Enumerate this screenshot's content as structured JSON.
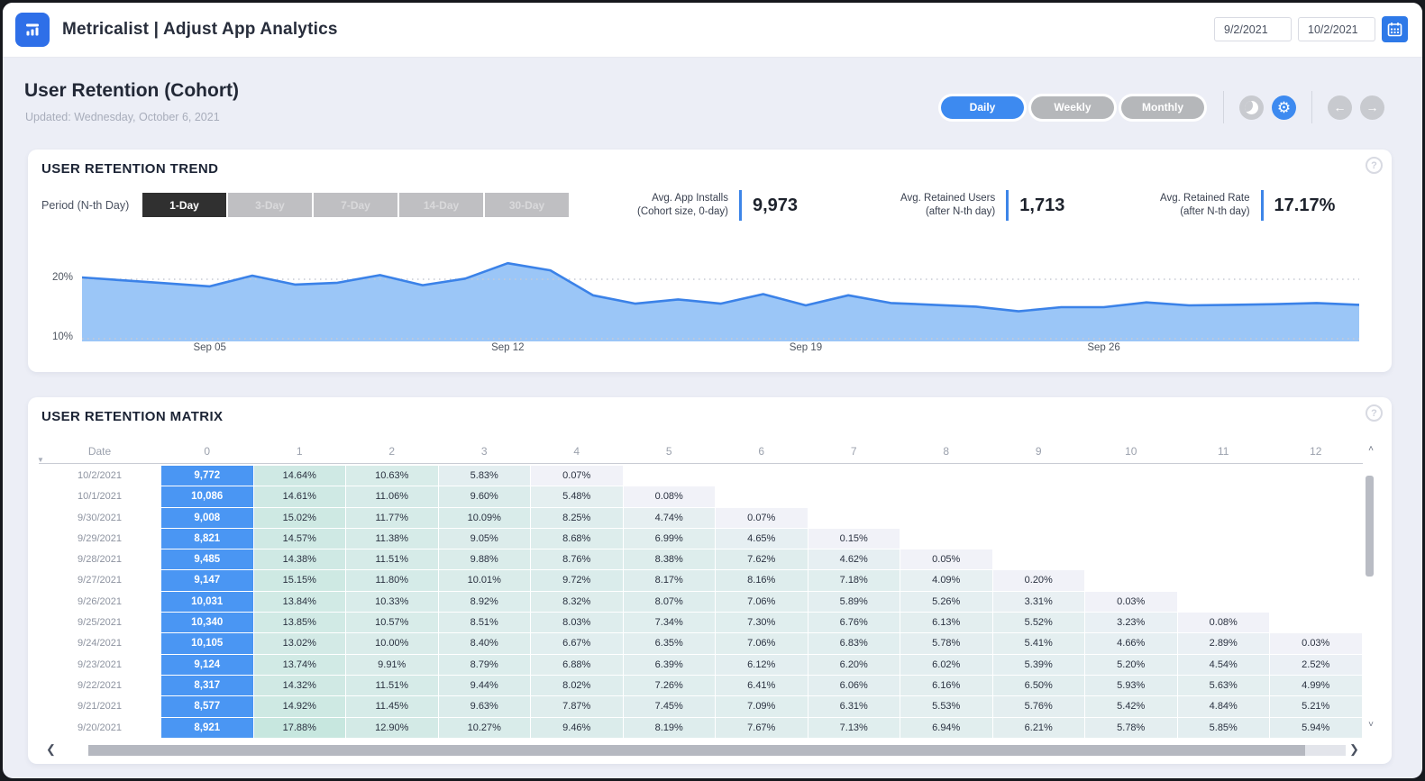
{
  "topbar": {
    "app_title": "Metricalist | Adjust App Analytics",
    "date_from": "9/2/2021",
    "date_to": "10/2/2021"
  },
  "page": {
    "title": "User Retention (Cohort)",
    "updated": "Updated: Wednesday, October 6, 2021",
    "view_toggles": [
      {
        "label": "Daily",
        "active": true
      },
      {
        "label": "Weekly",
        "active": false
      },
      {
        "label": "Monthly",
        "active": false
      }
    ]
  },
  "trend_card": {
    "title": "USER RETENTION TREND",
    "help": "?",
    "period_label": "Period (N-th Day)",
    "periods": [
      {
        "label": "1-Day",
        "active": true
      },
      {
        "label": "3-Day",
        "active": false
      },
      {
        "label": "7-Day",
        "active": false
      },
      {
        "label": "14-Day",
        "active": false
      },
      {
        "label": "30-Day",
        "active": false
      }
    ],
    "kpis": [
      {
        "label_line1": "Avg. App Installs",
        "label_line2": "(Cohort size, 0-day)",
        "value": "9,973"
      },
      {
        "label_line1": "Avg. Retained Users",
        "label_line2": "(after N-th day)",
        "value": "1,713"
      },
      {
        "label_line1": "Avg. Retained Rate",
        "label_line2": "(after N-th day)",
        "value": "17.17%"
      }
    ]
  },
  "chart_data": {
    "type": "area",
    "title": "USER RETENTION TREND",
    "unit": "%",
    "x": [
      "Sep 2",
      "Sep 3",
      "Sep 4",
      "Sep 5",
      "Sep 6",
      "Sep 7",
      "Sep 8",
      "Sep 9",
      "Sep 10",
      "Sep 11",
      "Sep 12",
      "Sep 13",
      "Sep 14",
      "Sep 15",
      "Sep 16",
      "Sep 17",
      "Sep 18",
      "Sep 19",
      "Sep 20",
      "Sep 21",
      "Sep 22",
      "Sep 23",
      "Sep 24",
      "Sep 25",
      "Sep 26",
      "Sep 27",
      "Sep 28",
      "Sep 29",
      "Sep 30",
      "Oct 1",
      "Oct 2"
    ],
    "values": [
      20.3,
      19.8,
      19.3,
      18.8,
      20.6,
      19.1,
      19.4,
      20.7,
      19.0,
      20.1,
      22.7,
      21.5,
      17.3,
      15.9,
      16.6,
      15.9,
      17.5,
      15.6,
      17.3,
      16.0,
      15.7,
      15.4,
      14.6,
      15.3,
      15.3,
      16.1,
      15.6,
      15.7,
      15.8,
      16.0,
      15.7
    ],
    "x_ticks": [
      "Sep 05",
      "Sep 12",
      "Sep 19",
      "Sep 26"
    ],
    "x_tick_positions": [
      3,
      10,
      17,
      24
    ],
    "y_ticks": [
      "20%",
      "10%"
    ],
    "y_tick_values": [
      20,
      10
    ],
    "ylim": [
      9.55,
      25.6
    ],
    "grid": "dotted horizontal lines at 10% and 20%",
    "legend": "none",
    "line_color": "#3b82e8",
    "fill_color": "#9bc6f7"
  },
  "matrix_card": {
    "title": "USER RETENTION MATRIX",
    "help": "?",
    "columns": [
      "Date",
      "0",
      "1",
      "2",
      "3",
      "4",
      "5",
      "6",
      "7",
      "8",
      "9",
      "10",
      "11",
      "12"
    ],
    "heat_low": "#f1f2f8",
    "heat_high": "#c7e7df",
    "cohort_color": "#4a96f3",
    "rows": [
      {
        "date": "10/2/2021",
        "cohort_size": "9,772",
        "retention": [
          14.64,
          10.63,
          5.83,
          0.07
        ]
      },
      {
        "date": "10/1/2021",
        "cohort_size": "10,086",
        "retention": [
          14.61,
          11.06,
          9.6,
          5.48,
          0.08
        ]
      },
      {
        "date": "9/30/2021",
        "cohort_size": "9,008",
        "retention": [
          15.02,
          11.77,
          10.09,
          8.25,
          4.74,
          0.07
        ]
      },
      {
        "date": "9/29/2021",
        "cohort_size": "8,821",
        "retention": [
          14.57,
          11.38,
          9.05,
          8.68,
          6.99,
          4.65,
          0.15
        ]
      },
      {
        "date": "9/28/2021",
        "cohort_size": "9,485",
        "retention": [
          14.38,
          11.51,
          9.88,
          8.76,
          8.38,
          7.62,
          4.62,
          0.05
        ]
      },
      {
        "date": "9/27/2021",
        "cohort_size": "9,147",
        "retention": [
          15.15,
          11.8,
          10.01,
          9.72,
          8.17,
          8.16,
          7.18,
          4.09,
          0.2
        ]
      },
      {
        "date": "9/26/2021",
        "cohort_size": "10,031",
        "retention": [
          13.84,
          10.33,
          8.92,
          8.32,
          8.07,
          7.06,
          5.89,
          5.26,
          3.31,
          0.03
        ]
      },
      {
        "date": "9/25/2021",
        "cohort_size": "10,340",
        "retention": [
          13.85,
          10.57,
          8.51,
          8.03,
          7.34,
          7.3,
          6.76,
          6.13,
          5.52,
          3.23,
          0.08
        ]
      },
      {
        "date": "9/24/2021",
        "cohort_size": "10,105",
        "retention": [
          13.02,
          10.0,
          8.4,
          6.67,
          6.35,
          7.06,
          6.83,
          5.78,
          5.41,
          4.66,
          2.89,
          0.03
        ]
      },
      {
        "date": "9/23/2021",
        "cohort_size": "9,124",
        "retention": [
          13.74,
          9.91,
          8.79,
          6.88,
          6.39,
          6.12,
          6.2,
          6.02,
          5.39,
          5.2,
          4.54,
          2.52
        ]
      },
      {
        "date": "9/22/2021",
        "cohort_size": "8,317",
        "retention": [
          14.32,
          11.51,
          9.44,
          8.02,
          7.26,
          6.41,
          6.06,
          6.16,
          6.5,
          5.93,
          5.63,
          4.99
        ]
      },
      {
        "date": "9/21/2021",
        "cohort_size": "8,577",
        "retention": [
          14.92,
          11.45,
          9.63,
          7.87,
          7.45,
          7.09,
          6.31,
          5.53,
          5.76,
          5.42,
          4.84,
          5.21
        ]
      },
      {
        "date": "9/20/2021",
        "cohort_size": "8,921",
        "retention": [
          17.88,
          12.9,
          10.27,
          9.46,
          8.19,
          7.67,
          7.13,
          6.94,
          6.21,
          5.78,
          5.85,
          5.94
        ]
      }
    ]
  },
  "colors": {
    "accent_blue": "#2e79e8",
    "active_pill_blue": "#3d8af0",
    "inactive_gray": "#b5b7ba",
    "dark_button": "#303030",
    "page_background": "#eceef6"
  }
}
